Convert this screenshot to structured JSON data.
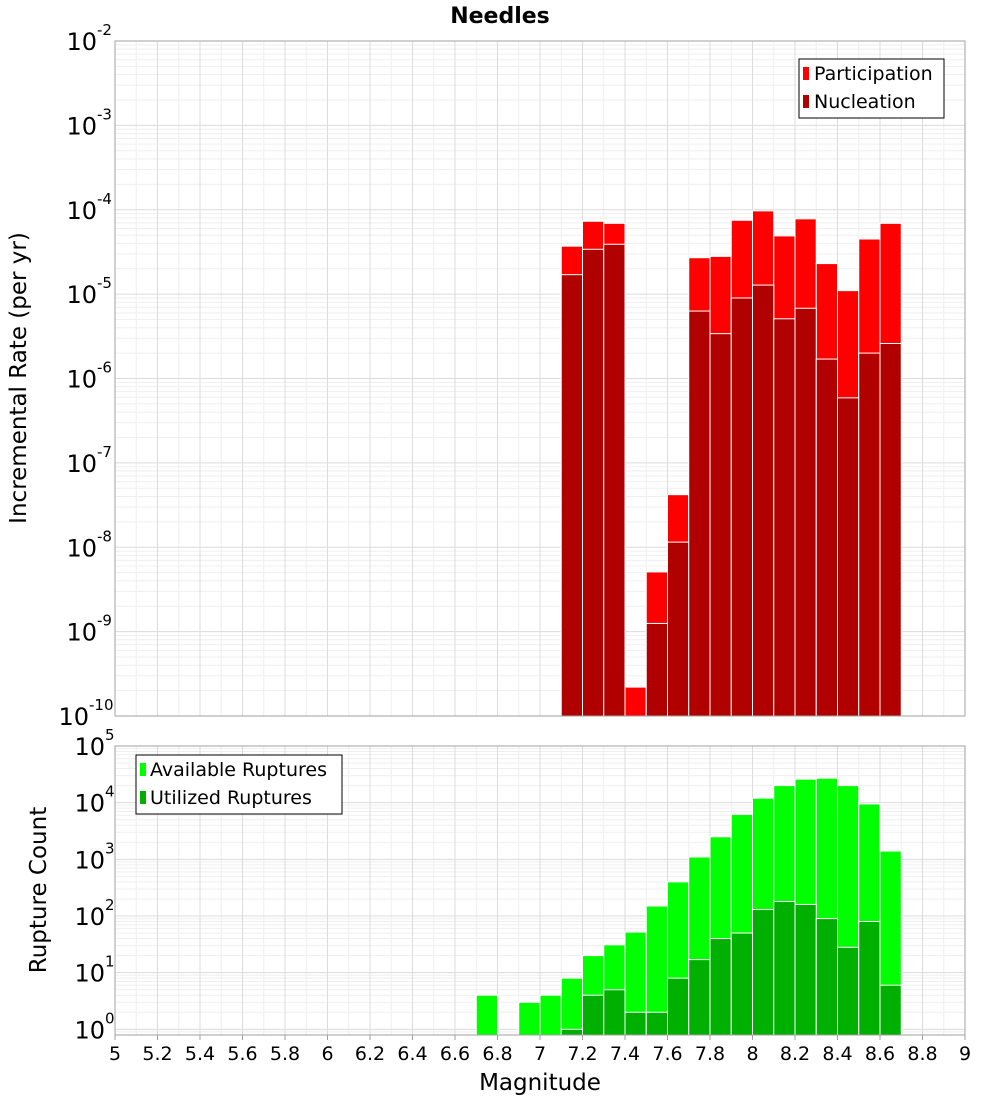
{
  "title": "Needles",
  "xlabel": "Magnitude",
  "x_ticks": [
    "5",
    "5.2",
    "5.4",
    "5.6",
    "5.8",
    "6",
    "6.2",
    "6.4",
    "6.6",
    "6.8",
    "7",
    "7.2",
    "7.4",
    "7.6",
    "7.8",
    "8",
    "8.2",
    "8.4",
    "8.6",
    "8.8",
    "9"
  ],
  "chart_data": [
    {
      "type": "bar",
      "scale": "log",
      "title": "Needles",
      "xlabel": "Magnitude",
      "ylabel": "Incremental Rate (per yr)",
      "xlim": [
        5,
        9
      ],
      "ylim_exponents": [
        -10,
        -2
      ],
      "bar_width": 0.1,
      "legend_position": "top-right",
      "x": [
        7.15,
        7.25,
        7.35,
        7.45,
        7.55,
        7.65,
        7.75,
        7.85,
        7.95,
        8.05,
        8.15,
        8.25,
        8.35,
        8.45,
        8.55,
        8.65
      ],
      "series": [
        {
          "name": "Participation",
          "color": "#ff0000",
          "values": [
            3.7e-05,
            7.3e-05,
            6.9e-05,
            2.2e-10,
            5.1e-09,
            4.2e-08,
            2.7e-05,
            2.8e-05,
            7.5e-05,
            9.7e-05,
            4.9e-05,
            7.8e-05,
            2.3e-05,
            1.1e-05,
            4.5e-05,
            6.9e-05
          ]
        },
        {
          "name": "Nucleation",
          "color": "#b00000",
          "values": [
            1.7e-05,
            3.4e-05,
            3.9e-05,
            null,
            1.25e-09,
            1.15e-08,
            6.3e-06,
            3.4e-06,
            9e-06,
            1.28e-05,
            5.1e-06,
            6.8e-06,
            1.7e-06,
            5.9e-07,
            2e-06,
            2.6e-06
          ]
        }
      ],
      "y_ticks": [
        {
          "base": "10",
          "exp": "-10"
        },
        {
          "base": "10",
          "exp": "-9"
        },
        {
          "base": "10",
          "exp": "-8"
        },
        {
          "base": "10",
          "exp": "-7"
        },
        {
          "base": "10",
          "exp": "-6"
        },
        {
          "base": "10",
          "exp": "-5"
        },
        {
          "base": "10",
          "exp": "-4"
        },
        {
          "base": "10",
          "exp": "-3"
        },
        {
          "base": "10",
          "exp": "-2"
        }
      ]
    },
    {
      "type": "bar",
      "scale": "log",
      "xlabel": "Magnitude",
      "ylabel": "Rupture Count",
      "xlim": [
        5,
        9
      ],
      "ylim_exponents": [
        -0.1,
        5
      ],
      "bar_width": 0.1,
      "legend_position": "top-left",
      "x": [
        6.75,
        6.85,
        6.95,
        7.05,
        7.15,
        7.25,
        7.35,
        7.45,
        7.55,
        7.65,
        7.75,
        7.85,
        7.95,
        8.05,
        8.15,
        8.25,
        8.35,
        8.45,
        8.55,
        8.65
      ],
      "series": [
        {
          "name": "Available Ruptures",
          "color": "#00ff00",
          "values": [
            4,
            null,
            3,
            4,
            8,
            20,
            31,
            52,
            150,
            400,
            1100,
            2500,
            6200,
            12000,
            20000,
            26000,
            27000,
            20000,
            9500,
            1400
          ]
        },
        {
          "name": "Utilized Ruptures",
          "color": "#00b000",
          "values": [
            null,
            null,
            null,
            null,
            1,
            4,
            5,
            2,
            2,
            8,
            17,
            40,
            50,
            130,
            180,
            160,
            90,
            28,
            80,
            6
          ]
        }
      ],
      "y_ticks": [
        {
          "base": "10",
          "exp": "0"
        },
        {
          "base": "10",
          "exp": "1"
        },
        {
          "base": "10",
          "exp": "2"
        },
        {
          "base": "10",
          "exp": "3"
        },
        {
          "base": "10",
          "exp": "4"
        },
        {
          "base": "10",
          "exp": "5"
        }
      ]
    }
  ]
}
